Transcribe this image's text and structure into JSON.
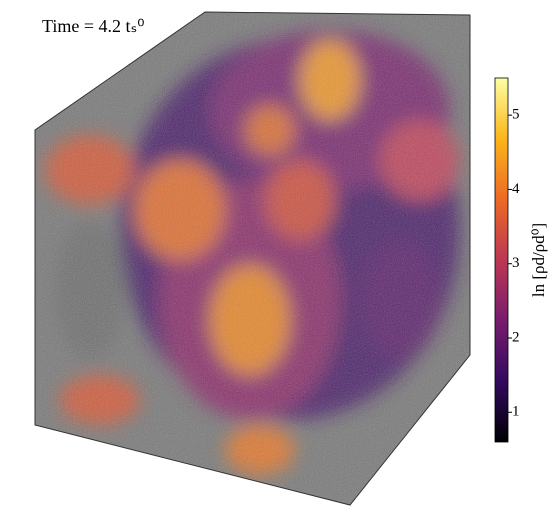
{
  "chart_data": {
    "type": "volume",
    "title": "Time = 4.2 tₛ⁰",
    "colorbar_label": "ln [ρd/ρd⁰]",
    "colormap": [
      "#000004",
      "#320a5e",
      "#781c6d",
      "#bc3754",
      "#ed6925",
      "#fbb61a",
      "#fcffa4"
    ],
    "clim": [
      0.6,
      5.5
    ],
    "cticks": [
      1,
      2,
      3,
      4,
      5
    ]
  }
}
